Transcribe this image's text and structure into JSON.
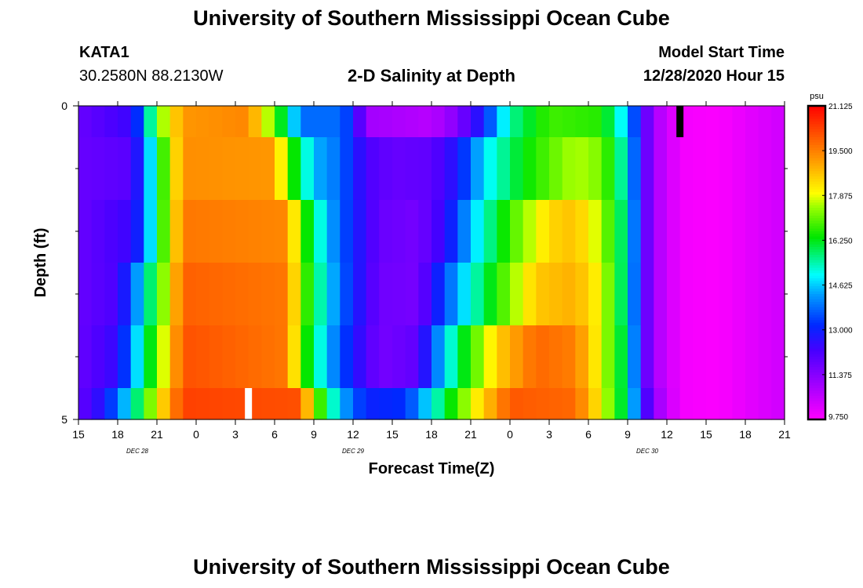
{
  "header": {
    "title": "University of Southern Mississippi Ocean Cube",
    "station": "KATA1",
    "coords": "30.2580N 88.2130W",
    "subtitle": "2-D Salinity at Depth",
    "start_label": "Model Start Time",
    "start_value": "12/28/2020 Hour 15"
  },
  "footer": {
    "title": "University of Southern Mississippi Ocean Cube"
  },
  "chart_data": {
    "type": "heatmap",
    "title": "2-D Salinity at Depth",
    "xlabel": "Forecast Time(Z)",
    "ylabel": "Depth (ft)",
    "x_tick_labels": [
      "15",
      "18",
      "21",
      "0",
      "3",
      "6",
      "9",
      "12",
      "15",
      "18",
      "21",
      "0",
      "3",
      "6",
      "9",
      "12",
      "15",
      "18",
      "21"
    ],
    "date_labels": [
      {
        "label": "DEC 28",
        "hour": 4.5
      },
      {
        "label": "DEC 29",
        "hour": 21
      },
      {
        "label": "DEC 30",
        "hour": 43.5
      }
    ],
    "x_range_hours": [
      0,
      54
    ],
    "y_tick_labels": [
      "0",
      "5"
    ],
    "ylim": [
      0,
      5
    ],
    "y_minor_ticks": [
      1,
      2,
      3,
      4
    ],
    "colorbar": {
      "unit": "psu",
      "min": 9.75,
      "max": 21.125,
      "ticks": [
        "21.125",
        "19.500",
        "17.875",
        "16.250",
        "14.625",
        "13.000",
        "11.375",
        "9.750"
      ]
    },
    "rows": [
      {
        "depth": [
          0,
          0.5
        ],
        "keys": [
          [
            0,
            11.8
          ],
          [
            4,
            12.4
          ],
          [
            5,
            14
          ],
          [
            6,
            17
          ],
          [
            8,
            19.2
          ],
          [
            13,
            19.4
          ],
          [
            15,
            17
          ],
          [
            17,
            13.8
          ],
          [
            20,
            13.8
          ],
          [
            21,
            13
          ],
          [
            22,
            11
          ],
          [
            27,
            10.7
          ],
          [
            29,
            11.4
          ],
          [
            31,
            13
          ],
          [
            33,
            15.5
          ],
          [
            36,
            16.8
          ],
          [
            40,
            16.6
          ],
          [
            42,
            14.5
          ],
          [
            43,
            12.5
          ],
          [
            44,
            10.9
          ],
          [
            45,
            10.5
          ],
          [
            46,
            9.9
          ],
          [
            49,
            9.8
          ],
          [
            52,
            10.2
          ],
          [
            54,
            10.4
          ]
        ]
      },
      {
        "depth": [
          0.5,
          1.5
        ],
        "keys": [
          [
            0,
            11.8
          ],
          [
            4,
            12
          ],
          [
            5,
            13.5
          ],
          [
            6,
            16
          ],
          [
            8,
            19.3
          ],
          [
            15,
            19.2
          ],
          [
            16,
            17
          ],
          [
            18,
            14.5
          ],
          [
            20,
            13.8
          ],
          [
            22,
            12.2
          ],
          [
            24,
            11.8
          ],
          [
            27,
            11.9
          ],
          [
            29,
            12.8
          ],
          [
            31,
            14.8
          ],
          [
            34,
            16.3
          ],
          [
            38,
            17.6
          ],
          [
            40,
            17.2
          ],
          [
            42,
            15
          ],
          [
            43,
            12.5
          ],
          [
            44,
            10.9
          ],
          [
            45,
            10.5
          ],
          [
            46,
            9.9
          ],
          [
            49,
            9.8
          ],
          [
            52,
            10.2
          ],
          [
            54,
            10.4
          ]
        ]
      },
      {
        "depth": [
          1.5,
          2.5
        ],
        "keys": [
          [
            0,
            11.8
          ],
          [
            4,
            12.4
          ],
          [
            5,
            13.5
          ],
          [
            6,
            16
          ],
          [
            8,
            19.6
          ],
          [
            16,
            19.4
          ],
          [
            17,
            17
          ],
          [
            19,
            14.5
          ],
          [
            21,
            13
          ],
          [
            23,
            11.8
          ],
          [
            26,
            11.6
          ],
          [
            28,
            12.5
          ],
          [
            30,
            14.5
          ],
          [
            33,
            16.8
          ],
          [
            36,
            18.4
          ],
          [
            38,
            18.7
          ],
          [
            40,
            17.5
          ],
          [
            42,
            15.3
          ],
          [
            43,
            12.5
          ],
          [
            44,
            10.9
          ],
          [
            45,
            10.5
          ],
          [
            46,
            9.9
          ],
          [
            49,
            9.8
          ],
          [
            52,
            10.2
          ],
          [
            54,
            10.4
          ]
        ]
      },
      {
        "depth": [
          2.5,
          3.5
        ],
        "keys": [
          [
            0,
            11.8
          ],
          [
            3,
            12.2
          ],
          [
            4,
            13.5
          ],
          [
            6,
            16.5
          ],
          [
            8,
            19.9
          ],
          [
            16,
            19.6
          ],
          [
            17,
            17.3
          ],
          [
            19,
            14.8
          ],
          [
            21,
            13
          ],
          [
            23,
            11.7
          ],
          [
            26,
            11.6
          ],
          [
            27,
            12.5
          ],
          [
            29,
            14.4
          ],
          [
            32,
            16.6
          ],
          [
            35,
            18.6
          ],
          [
            38,
            18.9
          ],
          [
            40,
            17.9
          ],
          [
            42,
            15.2
          ],
          [
            43,
            12.5
          ],
          [
            44,
            10.9
          ],
          [
            45,
            10.5
          ],
          [
            46,
            9.9
          ],
          [
            49,
            9.8
          ],
          [
            52,
            10.2
          ],
          [
            54,
            10.4
          ]
        ]
      },
      {
        "depth": [
          3.5,
          4.5
        ],
        "keys": [
          [
            0,
            11.8
          ],
          [
            3,
            12.5
          ],
          [
            4,
            14
          ],
          [
            6,
            17
          ],
          [
            8,
            20.1
          ],
          [
            16,
            19.6
          ],
          [
            17,
            17
          ],
          [
            19,
            14.5
          ],
          [
            21,
            12.8
          ],
          [
            23,
            11.6
          ],
          [
            26,
            11.9
          ],
          [
            27,
            13.5
          ],
          [
            29,
            15.8
          ],
          [
            32,
            18.5
          ],
          [
            35,
            19.8
          ],
          [
            38,
            19.5
          ],
          [
            40,
            17.8
          ],
          [
            42,
            15.5
          ],
          [
            43,
            12.5
          ],
          [
            44,
            10.9
          ],
          [
            45,
            10.5
          ],
          [
            46,
            9.9
          ],
          [
            49,
            9.8
          ],
          [
            52,
            10.2
          ],
          [
            54,
            10.4
          ]
        ]
      },
      {
        "depth": [
          4.5,
          5
        ],
        "keys": [
          [
            0,
            11.8
          ],
          [
            2,
            12.8
          ],
          [
            4,
            15
          ],
          [
            6,
            18
          ],
          [
            8,
            20.3
          ],
          [
            17,
            20.1
          ],
          [
            18,
            17.5
          ],
          [
            20,
            14.5
          ],
          [
            22,
            13
          ],
          [
            25,
            13.2
          ],
          [
            27,
            15
          ],
          [
            30,
            17.8
          ],
          [
            33,
            20
          ],
          [
            38,
            19.8
          ],
          [
            40,
            18
          ],
          [
            42,
            15.5
          ],
          [
            43,
            13
          ],
          [
            44,
            11.2
          ],
          [
            45,
            10.6
          ],
          [
            46,
            9.9
          ],
          [
            49,
            9.8
          ],
          [
            52,
            10.2
          ],
          [
            54,
            10.4
          ]
        ]
      }
    ],
    "markers": [
      {
        "color": "#ffffff",
        "hour": 13,
        "depth": [
          4.5,
          5
        ]
      },
      {
        "color": "#000000",
        "hour": 46,
        "depth": [
          0,
          0.5
        ]
      }
    ]
  }
}
